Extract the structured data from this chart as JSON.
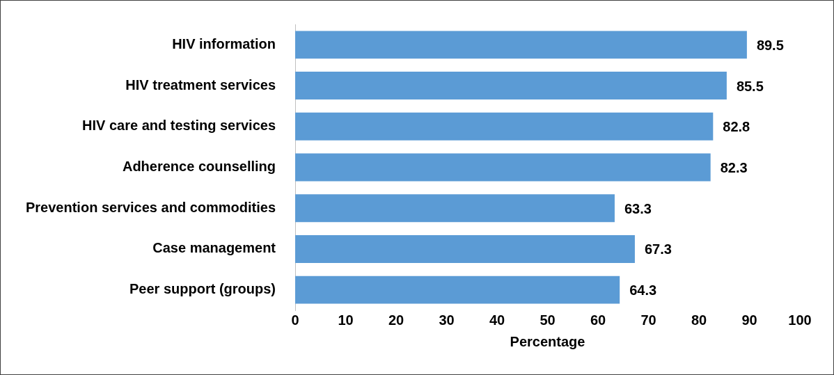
{
  "chart_data": {
    "type": "bar",
    "orientation": "horizontal",
    "xlabel": "Percentage",
    "categories": [
      "HIV information",
      "HIV treatment services",
      "HIV care and testing services",
      "Adherence counselling",
      "Prevention services and commodities",
      "Case management",
      "Peer support (groups)"
    ],
    "values": [
      89.5,
      85.5,
      82.8,
      82.3,
      63.3,
      67.3,
      64.3
    ],
    "color": "#5b9bd5",
    "xlim": [
      0,
      100
    ],
    "xticks": [
      0,
      10,
      20,
      30,
      40,
      50,
      60,
      70,
      80,
      90,
      100
    ],
    "grid": false,
    "legend": false,
    "data_labels": true
  }
}
